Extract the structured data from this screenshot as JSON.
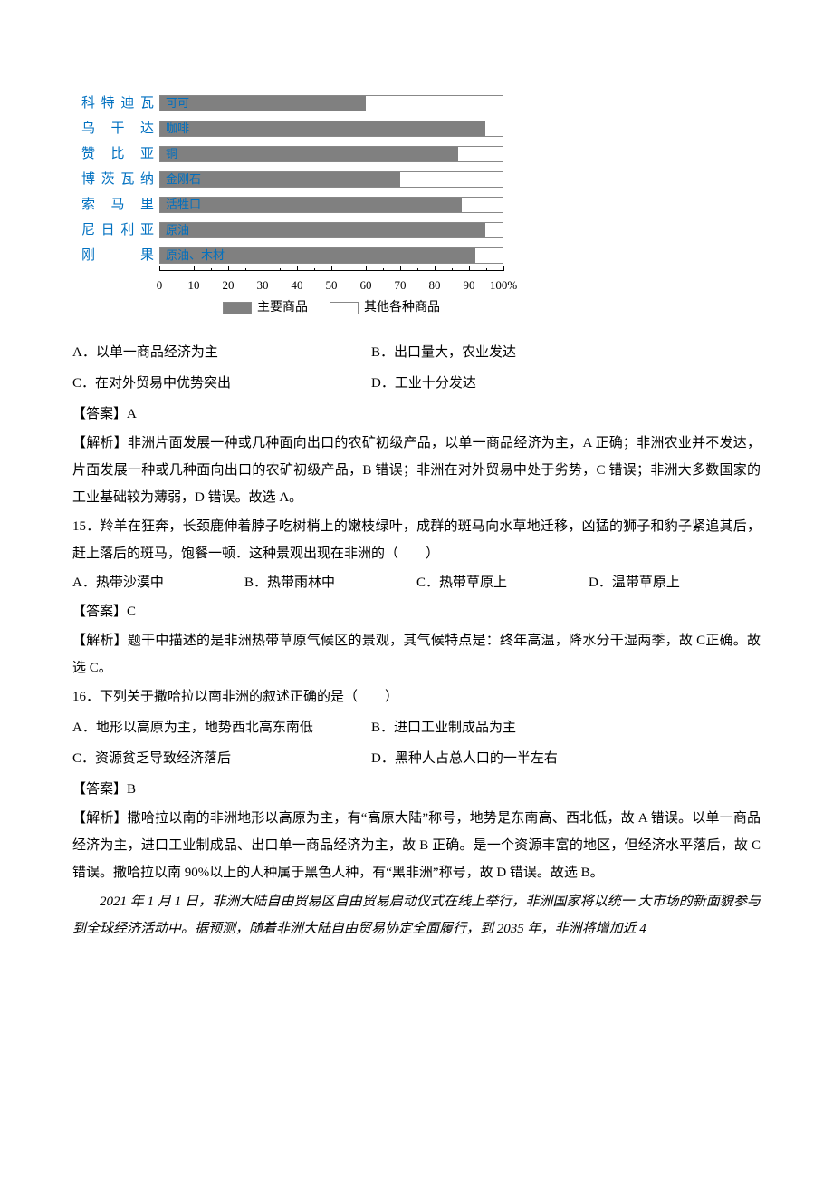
{
  "chart": {
    "rows": [
      {
        "country": "科特迪瓦",
        "commodity": "可可",
        "pct": 60
      },
      {
        "country": "乌 干 达",
        "commodity": "咖啡",
        "pct": 95
      },
      {
        "country": "赞 比 亚",
        "commodity": "铜",
        "pct": 87
      },
      {
        "country": "博茨瓦纳",
        "commodity": "金刚石",
        "pct": 70
      },
      {
        "country": "索 马 里",
        "commodity": "活牲口",
        "pct": 88
      },
      {
        "country": "尼日利亚",
        "commodity": "原油",
        "pct": 95
      },
      {
        "country": "刚　　果",
        "commodity": "原油、木材",
        "pct": 92
      }
    ],
    "axis_ticks": [
      0,
      10,
      20,
      30,
      40,
      50,
      60,
      70,
      80,
      90,
      100
    ],
    "axis_suffix": "%",
    "legend": {
      "main": "主要商品",
      "other": "其他各种商品"
    },
    "colors": {
      "bar": "#808080",
      "text_blue": "#0070c0",
      "border": "#888888"
    }
  },
  "q14": {
    "optA": "A．以单一商品经济为主",
    "optB": "B．出口量大，农业发达",
    "optC": "C．在对外贸易中优势突出",
    "optD": "D．工业十分发达",
    "answer_label": "【答案】A",
    "analysis": "【解析】非洲片面发展一种或几种面向出口的农矿初级产品，以单一商品经济为主，A 正确；非洲农业并不发达，片面发展一种或几种面向出口的农矿初级产品，B 错误；非洲在对外贸易中处于劣势，C 错误；非洲大多数国家的工业基础较为薄弱，D 错误。故选 A。"
  },
  "q15": {
    "stem": "15．羚羊在狂奔，长颈鹿伸着脖子吃树梢上的嫩枝绿叶，成群的斑马向水草地迁移，凶猛的狮子和豹子紧追其后，赶上落后的斑马，饱餐一顿．这种景观出现在非洲的（　　）",
    "optA": "A．热带沙漠中",
    "optB": "B．热带雨林中",
    "optC": "C．热带草原上",
    "optD": "D．温带草原上",
    "answer_label": "【答案】C",
    "analysis": "【解析】题干中描述的是非洲热带草原气候区的景观，其气候特点是：终年高温，降水分干湿两季，故 C正确。故选 C。"
  },
  "q16": {
    "stem": "16．下列关于撒哈拉以南非洲的叙述正确的是（　　）",
    "optA": "A．地形以高原为主，地势西北高东南低",
    "optB": "B．进口工业制成品为主",
    "optC": "C．资源贫乏导致经济落后",
    "optD": "D．黑种人占总人口的一半左右",
    "answer_label": "【答案】B",
    "analysis": "【解析】撒哈拉以南的非洲地形以高原为主，有“高原大陆”称号，地势是东南高、西北低，故 A 错误。以单一商品经济为主，进口工业制成品、出口单一商品经济为主，故 B 正确。是一个资源丰富的地区，但经济水平落后，故 C 错误。撒哈拉以南 90%以上的人种属于黑色人种，有“黑非洲”称号，故 D 错误。故选 B。"
  },
  "passage": "2021 年 1 月 1 日，非洲大陆自由贸易区自由贸易启动仪式在线上举行，非洲国家将以统一 大市场的新面貌参与到全球经济活动中。据预测，随着非洲大陆自由贸易协定全面履行，到 2035 年，非洲将增加近 4"
}
